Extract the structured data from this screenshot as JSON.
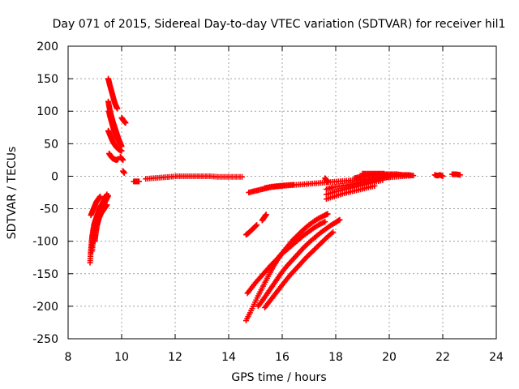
{
  "chart_data": {
    "type": "scatter",
    "title": "Day 071 of 2015, Sidereal Day-to-day VTEC variation (SDTVAR) for receiver hil1",
    "xlabel": "GPS time / hours",
    "ylabel": "SDTVAR / TECUs",
    "xlim": [
      8,
      24
    ],
    "ylim": [
      -250,
      200
    ],
    "xticks": [
      8,
      10,
      12,
      14,
      16,
      18,
      20,
      22,
      24
    ],
    "yticks": [
      -250,
      -200,
      -150,
      -100,
      -50,
      0,
      50,
      100,
      150,
      200
    ],
    "grid": true,
    "marker": "plus",
    "color": "#ff0000",
    "series": [
      {
        "points": [
          [
            8.82,
            -133
          ],
          [
            8.84,
            -120
          ],
          [
            8.86,
            -110
          ],
          [
            8.88,
            -100
          ],
          [
            8.9,
            -92
          ],
          [
            8.93,
            -84
          ],
          [
            8.96,
            -76
          ],
          [
            9.0,
            -70
          ],
          [
            9.05,
            -64
          ],
          [
            9.1,
            -58
          ],
          [
            9.15,
            -52
          ],
          [
            9.2,
            -47
          ],
          [
            9.25,
            -44
          ],
          [
            9.3,
            -40
          ],
          [
            9.35,
            -36
          ],
          [
            9.4,
            -32
          ],
          [
            9.45,
            -28
          ]
        ]
      },
      {
        "points": [
          [
            8.9,
            -115
          ],
          [
            8.92,
            -104
          ],
          [
            8.95,
            -94
          ],
          [
            8.98,
            -85
          ],
          [
            9.02,
            -78
          ],
          [
            9.06,
            -70
          ],
          [
            9.1,
            -64
          ],
          [
            9.15,
            -58
          ],
          [
            9.2,
            -54
          ],
          [
            9.25,
            -50
          ],
          [
            9.3,
            -46
          ],
          [
            9.35,
            -42
          ],
          [
            9.4,
            -38
          ],
          [
            9.45,
            -34
          ],
          [
            9.5,
            -30
          ]
        ]
      },
      {
        "points": [
          [
            8.85,
            -60
          ],
          [
            8.9,
            -55
          ],
          [
            8.95,
            -50
          ],
          [
            9.0,
            -45
          ],
          [
            9.05,
            -40
          ],
          [
            9.1,
            -37
          ],
          [
            9.15,
            -34
          ],
          [
            9.2,
            -31
          ]
        ]
      },
      {
        "points": [
          [
            9.0,
            -100
          ],
          [
            9.02,
            -92
          ],
          [
            9.05,
            -84
          ],
          [
            9.08,
            -76
          ],
          [
            9.12,
            -70
          ],
          [
            9.16,
            -64
          ],
          [
            9.2,
            -60
          ],
          [
            9.25,
            -56
          ],
          [
            9.3,
            -53
          ],
          [
            9.35,
            -50
          ],
          [
            9.4,
            -47
          ],
          [
            9.45,
            -44
          ]
        ]
      },
      {
        "points": [
          [
            9.5,
            150
          ],
          [
            9.53,
            145
          ],
          [
            9.56,
            140
          ],
          [
            9.6,
            134
          ],
          [
            9.64,
            128
          ],
          [
            9.68,
            122
          ],
          [
            9.72,
            116
          ],
          [
            9.76,
            111
          ],
          [
            9.8,
            107
          ],
          [
            9.84,
            104
          ]
        ]
      },
      {
        "points": [
          [
            9.5,
            115
          ],
          [
            9.53,
            108
          ],
          [
            9.56,
            102
          ],
          [
            9.6,
            95
          ],
          [
            9.64,
            89
          ],
          [
            9.68,
            83
          ],
          [
            9.72,
            78
          ],
          [
            9.76,
            73
          ],
          [
            9.8,
            68
          ],
          [
            9.84,
            63
          ],
          [
            9.88,
            58
          ],
          [
            9.92,
            54
          ],
          [
            9.96,
            50
          ],
          [
            10.0,
            46
          ]
        ]
      },
      {
        "points": [
          [
            9.52,
            100
          ],
          [
            9.56,
            93
          ],
          [
            9.6,
            87
          ],
          [
            9.64,
            81
          ],
          [
            9.68,
            75
          ],
          [
            9.72,
            70
          ],
          [
            9.76,
            66
          ],
          [
            9.8,
            62
          ],
          [
            9.84,
            58
          ],
          [
            9.88,
            55
          ],
          [
            9.92,
            52
          ],
          [
            9.96,
            49
          ]
        ]
      },
      {
        "points": [
          [
            9.5,
            70
          ],
          [
            9.54,
            66
          ],
          [
            9.58,
            62
          ],
          [
            9.62,
            58
          ],
          [
            9.66,
            54
          ],
          [
            9.7,
            51
          ],
          [
            9.75,
            48
          ],
          [
            9.8,
            45
          ],
          [
            9.85,
            43
          ],
          [
            9.9,
            41
          ],
          [
            9.95,
            40
          ],
          [
            10.0,
            39
          ]
        ]
      },
      {
        "points": [
          [
            9.53,
            35
          ],
          [
            9.58,
            32
          ],
          [
            9.63,
            29
          ],
          [
            9.68,
            27
          ],
          [
            9.74,
            26
          ],
          [
            9.8,
            25
          ],
          [
            9.86,
            26
          ]
        ]
      },
      {
        "points": [
          [
            10.0,
            90
          ],
          [
            10.05,
            87
          ],
          [
            10.1,
            84
          ],
          [
            10.15,
            82
          ]
        ]
      },
      {
        "points": [
          [
            9.95,
            30
          ],
          [
            10.0,
            27
          ],
          [
            10.05,
            25
          ]
        ]
      },
      {
        "points": [
          [
            10.05,
            8
          ],
          [
            10.1,
            5
          ]
        ]
      },
      {
        "points": [
          [
            10.45,
            -8
          ],
          [
            10.55,
            -8
          ],
          [
            10.65,
            -8
          ]
        ]
      },
      {
        "points": [
          [
            10.9,
            -4
          ],
          [
            11.2,
            -3
          ],
          [
            11.5,
            -2
          ],
          [
            11.8,
            -1
          ],
          [
            12.1,
            0
          ],
          [
            12.4,
            0
          ],
          [
            12.7,
            0
          ],
          [
            13.0,
            0
          ],
          [
            13.3,
            0
          ],
          [
            13.6,
            -1
          ],
          [
            13.9,
            -1
          ],
          [
            14.2,
            -1
          ],
          [
            14.5,
            -1
          ]
        ]
      },
      {
        "points": [
          [
            14.75,
            -25
          ],
          [
            14.95,
            -23
          ],
          [
            15.15,
            -21
          ],
          [
            15.35,
            -19
          ],
          [
            15.55,
            -17
          ],
          [
            15.75,
            -16
          ],
          [
            16.0,
            -15
          ],
          [
            16.3,
            -14
          ],
          [
            16.6,
            -13
          ],
          [
            16.9,
            -12
          ],
          [
            17.2,
            -11
          ],
          [
            17.5,
            -10
          ],
          [
            17.8,
            -9
          ],
          [
            18.1,
            -8
          ],
          [
            18.4,
            -7
          ],
          [
            18.7,
            -6
          ],
          [
            19.0,
            -5
          ],
          [
            19.3,
            -4
          ],
          [
            19.6,
            -3
          ],
          [
            19.9,
            -2
          ],
          [
            20.2,
            -1
          ],
          [
            20.5,
            0
          ],
          [
            20.8,
            1
          ]
        ]
      },
      {
        "points": [
          [
            15.35,
            -18
          ],
          [
            15.6,
            -16
          ],
          [
            15.85,
            -15
          ],
          [
            16.1,
            -14
          ],
          [
            16.4,
            -13
          ]
        ]
      },
      {
        "points": [
          [
            17.6,
            -3
          ],
          [
            17.65,
            -6
          ],
          [
            17.7,
            -9
          ]
        ]
      },
      {
        "points": [
          [
            17.65,
            -20
          ],
          [
            17.9,
            -17
          ],
          [
            18.2,
            -15
          ],
          [
            18.5,
            -13
          ],
          [
            18.8,
            -11
          ],
          [
            19.1,
            -8
          ],
          [
            19.4,
            -5
          ],
          [
            19.7,
            -3
          ],
          [
            20.0,
            -1
          ]
        ]
      },
      {
        "points": [
          [
            17.65,
            -28
          ],
          [
            17.95,
            -24
          ],
          [
            18.25,
            -21
          ],
          [
            18.55,
            -18
          ],
          [
            18.85,
            -15
          ],
          [
            19.15,
            -12
          ],
          [
            19.45,
            -9
          ],
          [
            19.75,
            -6
          ]
        ]
      },
      {
        "points": [
          [
            17.65,
            -35
          ],
          [
            17.95,
            -31
          ],
          [
            18.25,
            -27
          ],
          [
            18.55,
            -24
          ],
          [
            18.85,
            -21
          ],
          [
            19.15,
            -18
          ],
          [
            19.45,
            -15
          ]
        ]
      },
      {
        "points": [
          [
            18.7,
            -3
          ],
          [
            18.9,
            -1
          ],
          [
            19.1,
            1
          ],
          [
            19.3,
            2
          ],
          [
            19.5,
            3
          ],
          [
            19.7,
            3
          ],
          [
            19.9,
            3
          ],
          [
            20.1,
            3
          ],
          [
            20.3,
            3
          ],
          [
            20.5,
            2
          ],
          [
            20.7,
            2
          ],
          [
            20.9,
            1
          ]
        ]
      },
      {
        "points": [
          [
            19.0,
            4
          ],
          [
            19.2,
            4
          ],
          [
            19.4,
            4
          ],
          [
            19.6,
            4
          ],
          [
            19.8,
            4
          ]
        ]
      },
      {
        "points": [
          [
            21.7,
            2
          ],
          [
            21.8,
            1
          ],
          [
            21.9,
            2
          ],
          [
            22.0,
            0
          ]
        ]
      },
      {
        "points": [
          [
            22.35,
            3
          ],
          [
            22.5,
            3
          ],
          [
            22.65,
            2
          ]
        ]
      },
      {
        "points": [
          [
            14.65,
            -90
          ],
          [
            14.75,
            -87
          ],
          [
            14.85,
            -83
          ],
          [
            14.95,
            -79
          ],
          [
            15.05,
            -75
          ]
        ]
      },
      {
        "points": [
          [
            15.25,
            -68
          ],
          [
            15.3,
            -65
          ],
          [
            15.35,
            -62
          ],
          [
            15.4,
            -59
          ]
        ]
      },
      {
        "points": [
          [
            14.65,
            -222
          ],
          [
            14.8,
            -210
          ],
          [
            14.95,
            -197
          ],
          [
            15.1,
            -184
          ],
          [
            15.25,
            -172
          ],
          [
            15.4,
            -160
          ],
          [
            15.55,
            -148
          ],
          [
            15.7,
            -137
          ],
          [
            15.85,
            -127
          ],
          [
            16.0,
            -118
          ],
          [
            16.2,
            -108
          ],
          [
            16.4,
            -98
          ],
          [
            16.6,
            -90
          ],
          [
            16.8,
            -82
          ],
          [
            17.0,
            -75
          ],
          [
            17.2,
            -69
          ],
          [
            17.4,
            -64
          ],
          [
            17.6,
            -60
          ],
          [
            17.7,
            -58
          ]
        ]
      },
      {
        "points": [
          [
            14.7,
            -180
          ],
          [
            14.85,
            -172
          ],
          [
            15.0,
            -164
          ],
          [
            15.15,
            -157
          ],
          [
            15.3,
            -150
          ],
          [
            15.45,
            -143
          ],
          [
            15.6,
            -136
          ],
          [
            15.75,
            -130
          ],
          [
            15.9,
            -123
          ],
          [
            16.05,
            -117
          ],
          [
            16.2,
            -112
          ],
          [
            16.4,
            -105
          ],
          [
            16.6,
            -98
          ],
          [
            16.8,
            -91
          ],
          [
            17.0,
            -85
          ],
          [
            17.2,
            -79
          ],
          [
            17.4,
            -74
          ],
          [
            17.6,
            -70
          ]
        ]
      },
      {
        "points": [
          [
            15.1,
            -200
          ],
          [
            15.25,
            -192
          ],
          [
            15.4,
            -183
          ],
          [
            15.55,
            -174
          ],
          [
            15.7,
            -165
          ],
          [
            15.85,
            -156
          ],
          [
            16.0,
            -147
          ],
          [
            16.2,
            -137
          ],
          [
            16.4,
            -128
          ],
          [
            16.6,
            -119
          ],
          [
            16.8,
            -110
          ],
          [
            17.0,
            -102
          ],
          [
            17.2,
            -95
          ],
          [
            17.4,
            -88
          ],
          [
            17.6,
            -82
          ],
          [
            17.8,
            -76
          ],
          [
            18.0,
            -71
          ],
          [
            18.15,
            -67
          ]
        ]
      },
      {
        "points": [
          [
            15.35,
            -202
          ],
          [
            15.5,
            -194
          ],
          [
            15.65,
            -186
          ],
          [
            15.8,
            -178
          ],
          [
            15.95,
            -170
          ],
          [
            16.1,
            -162
          ],
          [
            16.3,
            -152
          ],
          [
            16.5,
            -143
          ],
          [
            16.7,
            -134
          ],
          [
            16.9,
            -125
          ],
          [
            17.1,
            -117
          ],
          [
            17.3,
            -109
          ],
          [
            17.5,
            -101
          ],
          [
            17.7,
            -93
          ],
          [
            17.9,
            -86
          ]
        ]
      }
    ]
  }
}
